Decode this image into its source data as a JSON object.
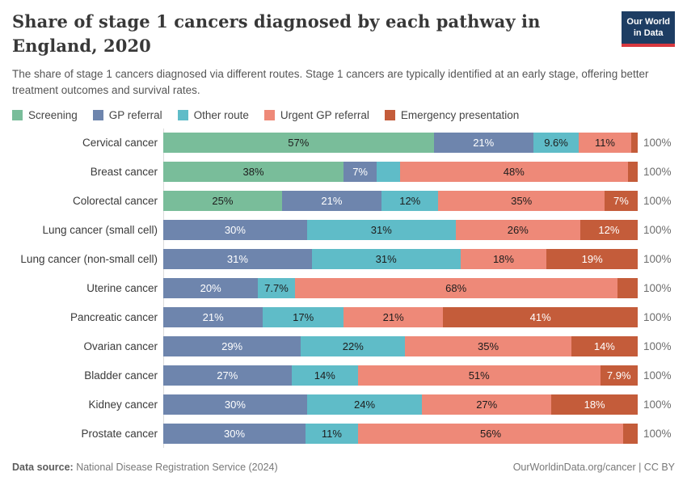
{
  "header": {
    "title": "Share of stage 1 cancers diagnosed by each pathway in England, 2020",
    "subtitle": "The share of stage 1 cancers diagnosed via different routes. Stage 1 cancers are typically identified at an early stage, offering better treatment outcomes and survival rates.",
    "logo": {
      "line1": "Our World",
      "line2": "in Data"
    }
  },
  "chart_data": {
    "type": "bar",
    "orientation": "horizontal",
    "stacked": true,
    "unit": "%",
    "xlim": [
      0,
      100
    ],
    "total_label": "100%",
    "legend_position": "top",
    "series": [
      {
        "name": "Screening",
        "color": "#79bd9a",
        "label_color": "#1d1d1d"
      },
      {
        "name": "GP referral",
        "color": "#6e85ad",
        "label_color": "#ffffff"
      },
      {
        "name": "Other route",
        "color": "#5fbcc8",
        "label_color": "#1d1d1d"
      },
      {
        "name": "Urgent GP referral",
        "color": "#ee8978",
        "label_color": "#1d1d1d"
      },
      {
        "name": "Emergency presentation",
        "color": "#c45c3a",
        "label_color": "#ffffff"
      }
    ],
    "categories": [
      "Cervical cancer",
      "Breast cancer",
      "Colorectal cancer",
      "Lung cancer (small cell)",
      "Lung cancer (non-small cell)",
      "Uterine cancer",
      "Pancreatic cancer",
      "Ovarian cancer",
      "Bladder cancer",
      "Kidney cancer",
      "Prostate cancer"
    ],
    "rows": [
      {
        "category": "Cervical cancer",
        "values": [
          57,
          21,
          9.6,
          11,
          1.4
        ],
        "labels": [
          "57%",
          "21%",
          "9.6%",
          "11%",
          ""
        ]
      },
      {
        "category": "Breast cancer",
        "values": [
          38,
          7,
          4.9,
          48,
          2.1
        ],
        "labels": [
          "38%",
          "7%",
          "",
          "48%",
          ""
        ]
      },
      {
        "category": "Colorectal cancer",
        "values": [
          25,
          21,
          12,
          35,
          7
        ],
        "labels": [
          "25%",
          "21%",
          "12%",
          "35%",
          "7%"
        ]
      },
      {
        "category": "Lung cancer (small cell)",
        "values": [
          0,
          30,
          31,
          26,
          12
        ],
        "labels": [
          "",
          "30%",
          "31%",
          "26%",
          "12%"
        ]
      },
      {
        "category": "Lung cancer (non-small cell)",
        "values": [
          0,
          31,
          31,
          18,
          19
        ],
        "labels": [
          "",
          "31%",
          "31%",
          "18%",
          "19%"
        ]
      },
      {
        "category": "Uterine cancer",
        "values": [
          0,
          20,
          7.7,
          68,
          4.3
        ],
        "labels": [
          "",
          "20%",
          "7.7%",
          "68%",
          ""
        ]
      },
      {
        "category": "Pancreatic cancer",
        "values": [
          0,
          21,
          17,
          21,
          41
        ],
        "labels": [
          "",
          "21%",
          "17%",
          "21%",
          "41%"
        ]
      },
      {
        "category": "Ovarian cancer",
        "values": [
          0,
          29,
          22,
          35,
          14
        ],
        "labels": [
          "",
          "29%",
          "22%",
          "35%",
          "14%"
        ]
      },
      {
        "category": "Bladder cancer",
        "values": [
          0,
          27,
          14,
          51,
          7.9
        ],
        "labels": [
          "",
          "27%",
          "14%",
          "51%",
          "7.9%"
        ]
      },
      {
        "category": "Kidney cancer",
        "values": [
          0,
          30,
          24,
          27,
          18
        ],
        "labels": [
          "",
          "30%",
          "24%",
          "27%",
          "18%"
        ]
      },
      {
        "category": "Prostate cancer",
        "values": [
          0,
          30,
          11,
          56,
          3
        ],
        "labels": [
          "",
          "30%",
          "11%",
          "56%",
          ""
        ]
      }
    ]
  },
  "footer": {
    "source_label": "Data source:",
    "source_text": " National Disease Registration Service (2024)",
    "right": "OurWorldinData.org/cancer | CC BY"
  }
}
